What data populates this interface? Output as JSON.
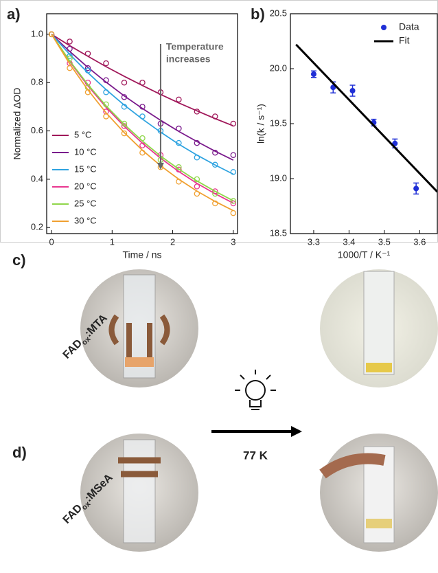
{
  "chart_data": [
    {
      "type": "line",
      "panel": "a)",
      "xlabel": "Time / ns",
      "ylabel": "Normalized ΔOD",
      "x": [
        0,
        0.3,
        0.6,
        0.9,
        1.2,
        1.5,
        1.8,
        2.1,
        2.4,
        2.7,
        3.0
      ],
      "series": [
        {
          "name": "5 °C",
          "color": "#a0185a",
          "values": [
            1,
            0.97,
            0.92,
            0.88,
            0.8,
            0.8,
            0.76,
            0.73,
            0.68,
            0.66,
            0.63
          ],
          "fit": [
            1,
            0.953,
            0.909,
            0.866,
            0.826,
            0.788,
            0.751,
            0.716,
            0.683,
            0.651,
            0.621
          ]
        },
        {
          "name": "10 °C",
          "color": "#7a1a8c",
          "values": [
            1,
            0.94,
            0.86,
            0.81,
            0.74,
            0.7,
            0.63,
            0.61,
            0.55,
            0.51,
            0.5
          ],
          "fit": [
            1,
            0.929,
            0.863,
            0.802,
            0.745,
            0.693,
            0.644,
            0.598,
            0.556,
            0.516,
            0.479
          ]
        },
        {
          "name": "15 °C",
          "color": "#2ea3e0",
          "values": [
            1,
            0.91,
            0.85,
            0.76,
            0.7,
            0.66,
            0.6,
            0.55,
            0.49,
            0.46,
            0.43
          ],
          "fit": [
            1,
            0.917,
            0.841,
            0.771,
            0.707,
            0.649,
            0.595,
            0.545,
            0.5,
            0.459,
            0.421
          ]
        },
        {
          "name": "20 °C",
          "color": "#e8368f",
          "values": [
            1,
            0.88,
            0.8,
            0.68,
            0.62,
            0.54,
            0.5,
            0.44,
            0.37,
            0.35,
            0.3
          ],
          "fit": [
            1,
            0.887,
            0.787,
            0.698,
            0.619,
            0.549,
            0.487,
            0.432,
            0.383,
            0.34,
            0.301
          ]
        },
        {
          "name": "25 °C",
          "color": "#8fd64a",
          "values": [
            1,
            0.9,
            0.78,
            0.71,
            0.63,
            0.57,
            0.48,
            0.45,
            0.4,
            0.34,
            0.31
          ],
          "fit": [
            1,
            0.89,
            0.792,
            0.704,
            0.627,
            0.558,
            0.496,
            0.442,
            0.393,
            0.35,
            0.311
          ]
        },
        {
          "name": "30 °C",
          "color": "#f0a030",
          "values": [
            1,
            0.86,
            0.76,
            0.66,
            0.59,
            0.51,
            0.45,
            0.39,
            0.34,
            0.3,
            0.26
          ],
          "fit": [
            1,
            0.877,
            0.77,
            0.675,
            0.593,
            0.52,
            0.456,
            0.4,
            0.351,
            0.308,
            0.27
          ]
        }
      ],
      "xlim": [
        -0.08,
        3.07
      ],
      "ylim": [
        0.175,
        1.085
      ],
      "xticks": [
        0,
        1,
        2,
        3
      ],
      "yticks": [
        0.2,
        0.4,
        0.6,
        {
          "value": 0.8,
          "label": "0.8"
        },
        {
          "value": 1.0,
          "label": "1.0"
        }
      ],
      "legend": "lower left",
      "annotation": {
        "lines": [
          "Temperature",
          "increases"
        ],
        "x": 1.8,
        "from": 0.96,
        "to": 0.44
      }
    },
    {
      "type": "scatter",
      "panel": "b)",
      "xlabel": "1000/T / K⁻¹",
      "ylabel": "ln(k / s⁻¹)",
      "series": [
        {
          "name": "Data",
          "color": "#1f2fd6",
          "x": [
            3.3,
            3.355,
            3.41,
            3.47,
            3.53,
            3.59
          ],
          "values": [
            19.95,
            19.83,
            19.8,
            19.51,
            19.32,
            18.91
          ],
          "errors": [
            0.03,
            0.05,
            0.05,
            0.03,
            0.04,
            0.05
          ]
        },
        {
          "name": "Fit",
          "color": "#000000",
          "x": [
            3.25,
            3.65
          ],
          "values": [
            20.22,
            18.88
          ]
        }
      ],
      "xlim": [
        3.234,
        3.65
      ],
      "ylim": [
        18.5,
        20.5
      ],
      "xticks": [
        3.3,
        3.4,
        3.5,
        3.6
      ],
      "yticks": [
        {
          "value": 18.5,
          "label": "18.5"
        },
        {
          "value": 19.0,
          "label": "19.0"
        },
        19.5,
        {
          "value": 20.0,
          "label": "20.0"
        },
        20.5
      ],
      "legend": "upper right"
    }
  ],
  "photos": {
    "c": {
      "label": "c)",
      "sample": {
        "main": "FAD",
        "sub": "ox",
        "rest": ":MTA"
      }
    },
    "d": {
      "label": "d)",
      "sample": {
        "main": "FAD",
        "sub": "ox",
        "rest": ":MSeA"
      }
    },
    "condition": "77 K"
  }
}
